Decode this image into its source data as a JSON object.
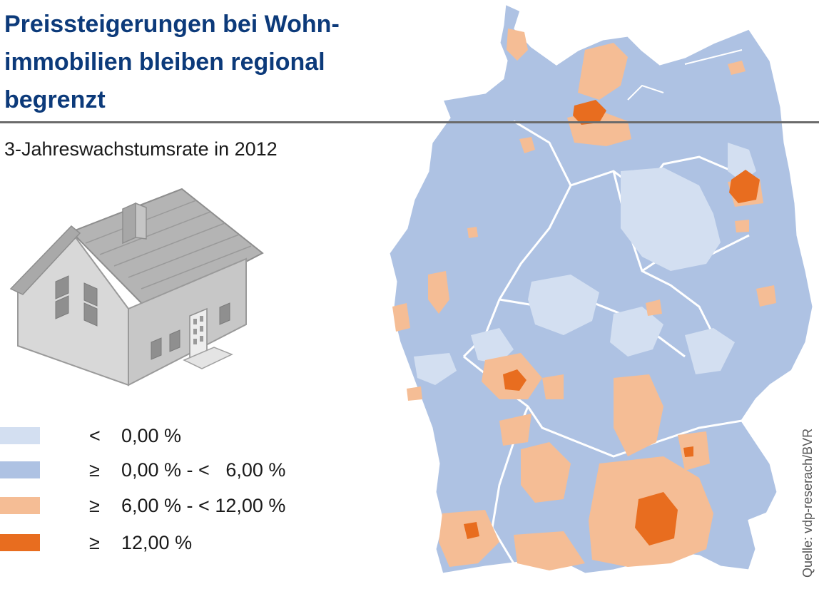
{
  "title": "Preissteigerungen bei Wohn-\nimmobilien bleiben regional\nbegrenzt",
  "subtitle": "3-Jahreswachstumsrate in 2012",
  "source": "Quelle: vdp-reserach/BVR",
  "colors": {
    "below_zero": "#d3dff1",
    "zero_to_six": "#aec2e3",
    "six_to_twelve": "#f5bd95",
    "twelve_plus": "#e86d1f",
    "border": "#ffffff",
    "title": "#0c3a7a"
  },
  "legend": [
    {
      "symbol": "<",
      "label": "0,00 %",
      "color": "#d3dff1"
    },
    {
      "symbol": "≥",
      "label": "0,00 % - <   6,00 %",
      "color": "#aec2e3"
    },
    {
      "symbol": "≥",
      "label": "6,00 % - < 12,00 %",
      "color": "#f5bd95"
    },
    {
      "symbol": "≥",
      "label": "12,00 %",
      "color": "#e86d1f"
    }
  ],
  "icons": {
    "house": "house-icon"
  }
}
